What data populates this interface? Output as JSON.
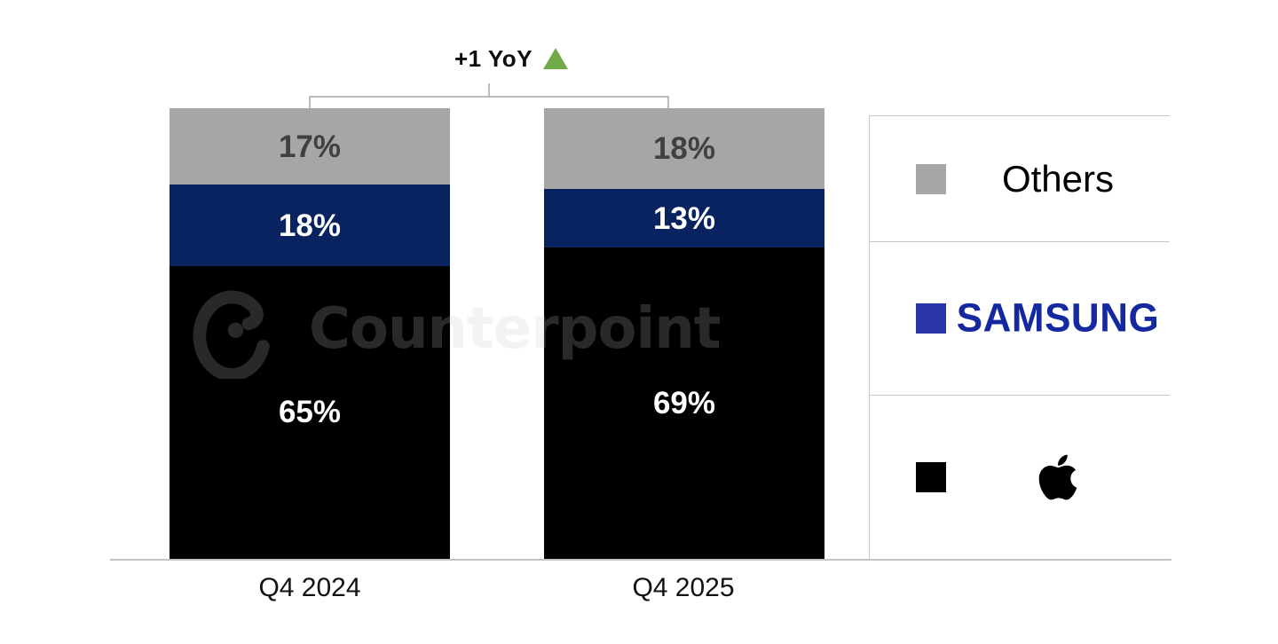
{
  "chart_data": {
    "type": "bar",
    "subtype": "stacked-100-percent",
    "categories": [
      "Q4 2024",
      "Q4 2025"
    ],
    "series": [
      {
        "name": "Others",
        "values": [
          17,
          18
        ],
        "color": "#A6A6A6",
        "label_color": "#404040"
      },
      {
        "name": "Samsung",
        "values": [
          18,
          13
        ],
        "color": "#08235F",
        "label_color": "#FFFFFF"
      },
      {
        "name": "Apple",
        "values": [
          65,
          69
        ],
        "color": "#000000",
        "label_color": "#FFFFFF"
      }
    ],
    "stack_order_top_to_bottom": [
      "Others",
      "Samsung",
      "Apple"
    ],
    "unit": "%",
    "data_labels": true,
    "ylim": [
      0,
      100
    ],
    "grid": false,
    "legend_position": "right",
    "annotation": {
      "text": "+1 YoY",
      "direction": "up",
      "triangle_color": "#6FAC49"
    }
  },
  "legend": {
    "items": [
      {
        "id": "others",
        "label": "Others",
        "swatch_color": "#A6A6A6"
      },
      {
        "id": "samsung",
        "label": "SAMSUNG",
        "swatch_color": "#2A35A8",
        "wordmark_color": "#1428A0"
      },
      {
        "id": "apple",
        "label": "Apple",
        "swatch_color": "#000000"
      }
    ]
  },
  "watermark": {
    "text": "Counterpoint"
  }
}
